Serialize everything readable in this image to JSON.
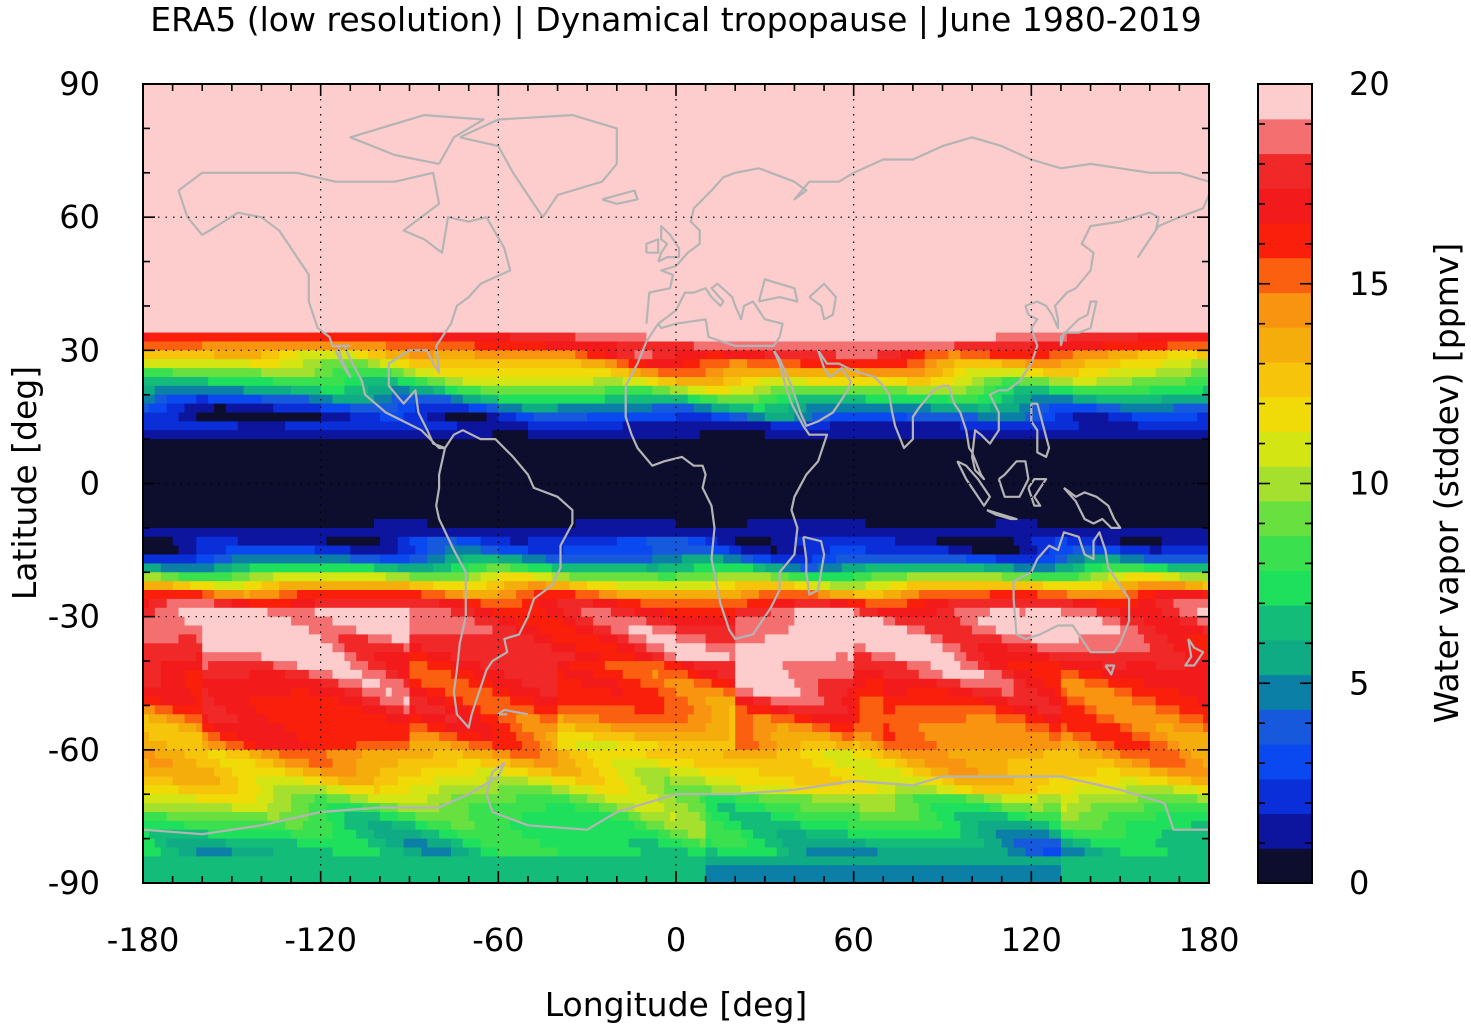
{
  "chart_data": {
    "type": "heatmap",
    "title": "ERA5 (low resolution) | Dynamical tropopause | June 1980-2019",
    "xlabel": "Longitude [deg]",
    "ylabel": "Latitude [deg]",
    "xlim": [
      -180,
      180
    ],
    "ylim": [
      -90,
      90
    ],
    "x_ticks": [
      "-180",
      "-120",
      "-60",
      "0",
      "60",
      "120",
      "180"
    ],
    "y_ticks": [
      "90",
      "60",
      "30",
      "0",
      "-30",
      "-60",
      "-90"
    ],
    "grid": true,
    "colorbar": {
      "label": "Water vapor (stddev) [ppmv]",
      "range": [
        0,
        20
      ],
      "ticks": [
        "0",
        "5",
        "10",
        "15",
        "20"
      ],
      "levels": [
        "#0d0d2e",
        "#0d149e",
        "#0a2ed8",
        "#0b49f0",
        "#1659dc",
        "#0b7fa6",
        "#0fab85",
        "#14bc7a",
        "#1ee05c",
        "#3ae04e",
        "#68e040",
        "#a6e02e",
        "#d4e514",
        "#f0da08",
        "#f6c40a",
        "#f5ad0c",
        "#f89410",
        "#fb6010",
        "#fa1f0a",
        "#f21a1a",
        "#f02828",
        "#f47070",
        "#fdcdcd"
      ]
    },
    "zonal_profile_stddev": {
      "lat": [
        90,
        45,
        36,
        33,
        30,
        28,
        26,
        24,
        22,
        20,
        18,
        16,
        14,
        12,
        10,
        8,
        0,
        -6,
        -9,
        -12,
        -15,
        -18,
        -20,
        -22,
        -24,
        -26,
        -28,
        -32,
        -38,
        -44,
        -50,
        -56,
        -62,
        -66,
        -70,
        -74,
        -78,
        -82,
        -86,
        -90
      ],
      "value": [
        20,
        20,
        20,
        18,
        16,
        14,
        12.5,
        11,
        9,
        7,
        5,
        3,
        2,
        1.5,
        0.6,
        0.3,
        0.3,
        0.4,
        0.8,
        1.5,
        2.5,
        5,
        8,
        11,
        13.5,
        16,
        17.5,
        18.5,
        18,
        17,
        16,
        14.5,
        13,
        12,
        10.5,
        9,
        8,
        7,
        6.5,
        6
      ]
    }
  }
}
